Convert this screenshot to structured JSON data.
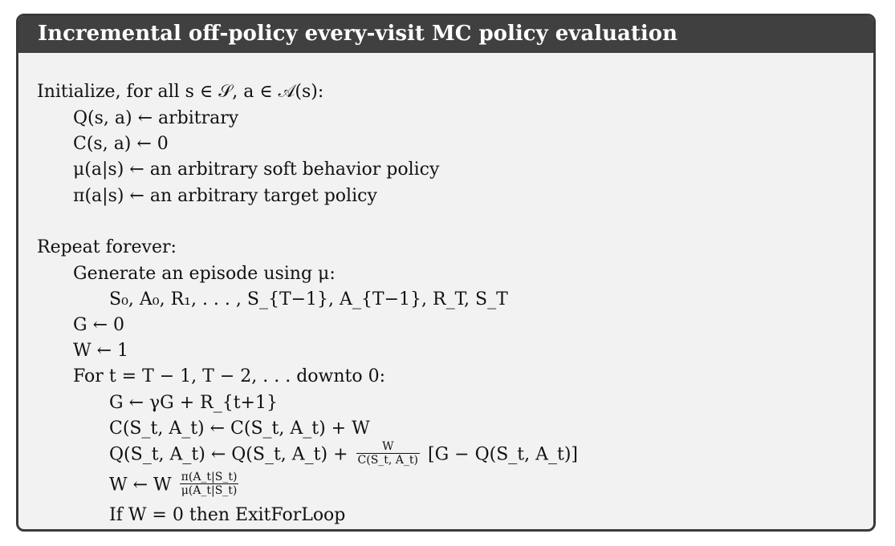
{
  "title": "Incremental off-policy every-visit MC policy evaluation",
  "lines": [
    "Initialize, for all s ∈ 𝒮, a ∈ 𝒜(s):",
    "Q(s, a) ← arbitrary",
    "C(s, a) ← 0",
    "μ(a|s) ← an arbitrary soft behavior policy",
    "π(a|s) ← an arbitrary target policy",
    "Repeat forever:",
    "Generate an episode using μ:",
    "S₀, A₀, R₁, . . . , S_{T−1}, A_{T−1}, R_T, S_T",
    "G ← 0",
    "W ← 1",
    "For t = T − 1, T − 2, . . . downto 0:",
    "G ← γG + R_{t+1}",
    "C(S_t, A_t) ← C(S_t, A_t) + W",
    "Q(S_t, A_t) ← Q(S_t, A_t) +",
    "[G − Q(S_t, A_t)]",
    "W ← W",
    "If W = 0 then ExitForLoop"
  ],
  "fractions": {
    "update_num": "W",
    "update_den": "C(S_t, A_t)",
    "ratio_num": "π(A_t|S_t)",
    "ratio_den": "μ(A_t|S_t)"
  }
}
